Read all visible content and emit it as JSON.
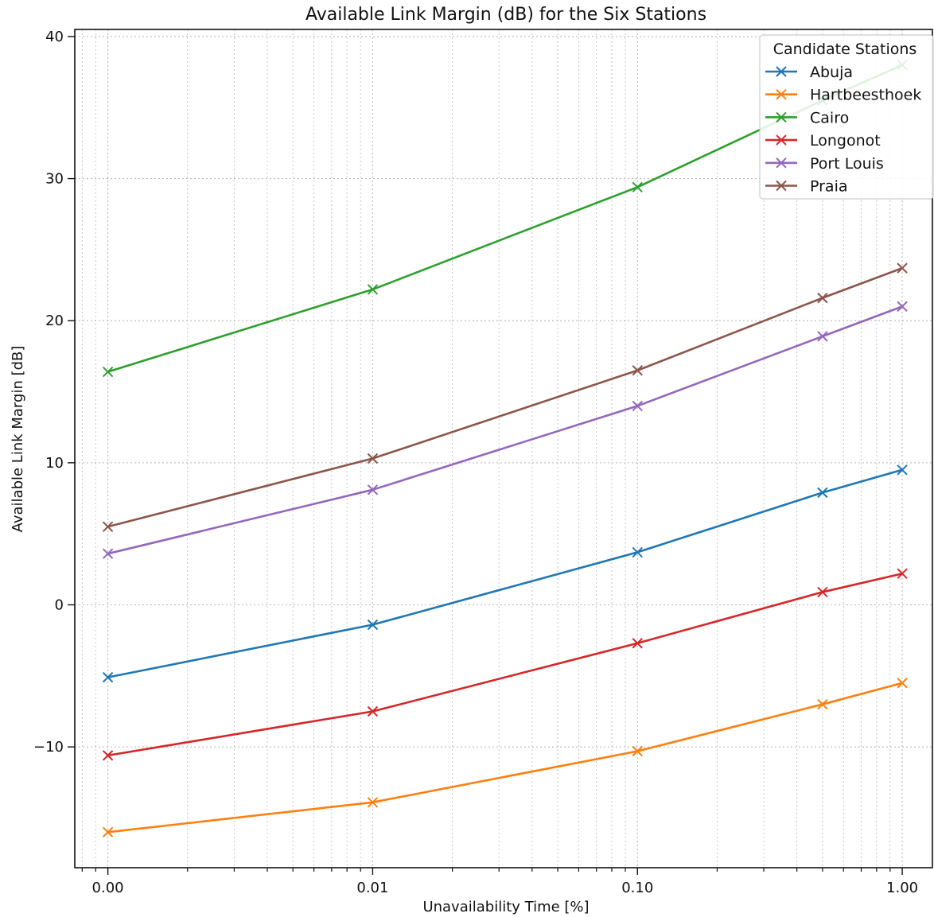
{
  "chart_data": {
    "type": "line",
    "title": "Available Link Margin (dB) for the Six Stations",
    "xlabel": "Unavailability Time [%]",
    "ylabel": "Available Link Margin [dB]",
    "x_scale": "log",
    "x": [
      0.001,
      0.01,
      0.1,
      0.5,
      1.0
    ],
    "x_ticks": [
      0.001,
      0.01,
      0.1,
      1.0
    ],
    "x_tick_labels": [
      "0.00",
      "0.01",
      "0.10",
      "1.00"
    ],
    "xlim": [
      0.00075,
      1.3
    ],
    "ylim": [
      -18.5,
      40.5
    ],
    "y_ticks": [
      -10,
      0,
      10,
      20,
      30,
      40
    ],
    "y_tick_labels": [
      "−10",
      "0",
      "10",
      "20",
      "30",
      "40"
    ],
    "grid": true,
    "marker": "x",
    "legend": {
      "title": "Candidate Stations",
      "placement": "top-right"
    },
    "series": [
      {
        "name": "Abuja",
        "color": "#1f77b4",
        "values": [
          -5.1,
          -1.4,
          3.7,
          7.9,
          9.5
        ]
      },
      {
        "name": "Hartbeesthoek",
        "color": "#ff7f0e",
        "values": [
          -16.0,
          -13.9,
          -10.3,
          -7.0,
          -5.5
        ]
      },
      {
        "name": "Cairo",
        "color": "#2ca02c",
        "values": [
          16.4,
          22.2,
          29.4,
          35.5,
          38.0
        ]
      },
      {
        "name": "Longonot",
        "color": "#d62728",
        "values": [
          -10.6,
          -7.5,
          -2.7,
          0.9,
          2.2
        ]
      },
      {
        "name": "Port Louis",
        "color": "#9467bd",
        "values": [
          3.6,
          8.1,
          14.0,
          18.9,
          21.0
        ]
      },
      {
        "name": "Praia",
        "color": "#8c564b",
        "values": [
          5.5,
          10.3,
          16.5,
          21.6,
          23.7
        ]
      }
    ]
  }
}
